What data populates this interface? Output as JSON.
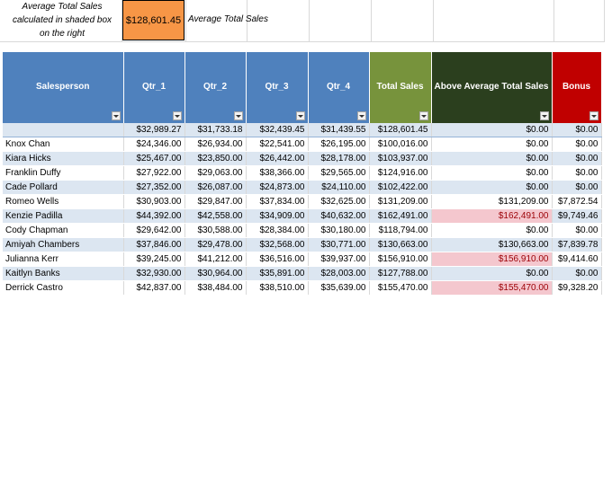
{
  "note": {
    "line1": "Average Total Sales",
    "line2": "calculated in shaded box",
    "line3": "on the right",
    "average_value": "$128,601.45",
    "average_label": "Average Total Sales"
  },
  "colors": {
    "header_blue": "#4f81bd",
    "header_green": "#77933c",
    "header_darkgreen": "#2b3f1e",
    "header_red": "#c00000",
    "avg_box": "#f79646",
    "band": "#dce6f1",
    "highlight": "#f4c7ce"
  },
  "table": {
    "headers": [
      "Salesperson",
      "Qtr_1",
      "Qtr_2",
      "Qtr_3",
      "Qtr_4",
      "Total Sales",
      "Above Average Total Sales",
      "Bonus"
    ],
    "summary": [
      "",
      "$32,989.27",
      "$31,733.18",
      "$32,439.45",
      "$31,439.55",
      "$128,601.45",
      "$0.00",
      "$0.00"
    ],
    "rows": [
      [
        "Knox Chan",
        "$24,346.00",
        "$26,934.00",
        "$22,541.00",
        "$26,195.00",
        "$100,016.00",
        "$0.00",
        "$0.00"
      ],
      [
        "Kiara Hicks",
        "$25,467.00",
        "$23,850.00",
        "$26,442.00",
        "$28,178.00",
        "$103,937.00",
        "$0.00",
        "$0.00"
      ],
      [
        "Franklin Duffy",
        "$27,922.00",
        "$29,063.00",
        "$38,366.00",
        "$29,565.00",
        "$124,916.00",
        "$0.00",
        "$0.00"
      ],
      [
        "Cade Pollard",
        "$27,352.00",
        "$26,087.00",
        "$24,873.00",
        "$24,110.00",
        "$102,422.00",
        "$0.00",
        "$0.00"
      ],
      [
        "Romeo Wells",
        "$30,903.00",
        "$29,847.00",
        "$37,834.00",
        "$32,625.00",
        "$131,209.00",
        "$131,209.00",
        "$7,872.54"
      ],
      [
        "Kenzie Padilla",
        "$44,392.00",
        "$42,558.00",
        "$34,909.00",
        "$40,632.00",
        "$162,491.00",
        "$162,491.00",
        "$9,749.46"
      ],
      [
        "Cody Chapman",
        "$29,642.00",
        "$30,588.00",
        "$28,384.00",
        "$30,180.00",
        "$118,794.00",
        "$0.00",
        "$0.00"
      ],
      [
        "Amiyah Chambers",
        "$37,846.00",
        "$29,478.00",
        "$32,568.00",
        "$30,771.00",
        "$130,663.00",
        "$130,663.00",
        "$7,839.78"
      ],
      [
        "Julianna Kerr",
        "$39,245.00",
        "$41,212.00",
        "$36,516.00",
        "$39,937.00",
        "$156,910.00",
        "$156,910.00",
        "$9,414.60"
      ],
      [
        "Kaitlyn Banks",
        "$32,930.00",
        "$30,964.00",
        "$35,891.00",
        "$28,003.00",
        "$127,788.00",
        "$0.00",
        "$0.00"
      ],
      [
        "Derrick Castro",
        "$42,837.00",
        "$38,484.00",
        "$38,510.00",
        "$35,639.00",
        "$155,470.00",
        "$155,470.00",
        "$9,328.20"
      ]
    ],
    "highlight_rows": [
      "Kenzie Padilla",
      "Julianna Kerr",
      "Derrick Castro"
    ]
  }
}
